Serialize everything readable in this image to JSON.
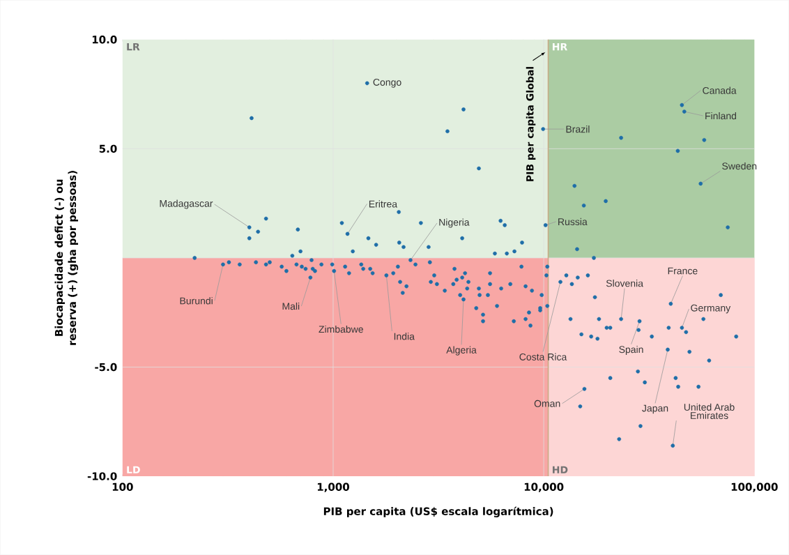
{
  "chart_data": {
    "type": "scatter",
    "xlabel": "PIB per capita (US$ escala logarítmica)",
    "ylabel": "Biocapacidade defict (-) ou reserva (+) (gha por pessoas)",
    "log": "x",
    "grid": true,
    "color": "#1f6ea8",
    "xlim": [
      100,
      100000
    ],
    "ylim": [
      -10,
      10
    ],
    "xticks": [
      100,
      {
        "value": 1000,
        "label": "1,000"
      },
      {
        "value": 10000,
        "label": "10,000"
      },
      {
        "value": 100000,
        "label": "100,000"
      }
    ],
    "yticks": [
      {
        "value": -10,
        "label": "-10.0"
      },
      {
        "value": -5,
        "label": "-5.0"
      },
      {
        "value": 0,
        "label": null
      },
      {
        "value": 5,
        "label": "5.0"
      },
      {
        "value": 10,
        "label": "10.0"
      }
    ],
    "x": [
      410,
      1450,
      3490,
      4160,
      4920,
      9930,
      23300,
      43300,
      45300,
      46500,
      57800,
      55600,
      14000,
      15500,
      19700,
      74800,
      10200,
      14400,
      17300,
      480,
      400,
      400,
      440,
      680,
      700,
      640,
      220,
      1100,
      1170,
      1470,
      1600,
      1240,
      2050,
      2060,
      2160,
      2610,
      2840,
      4100,
      6240,
      6530,
      7890,
      5860,
      6680,
      7260,
      300,
      320,
      360,
      430,
      480,
      500,
      570,
      600,
      670,
      710,
      740,
      790,
      800,
      820,
      780,
      880,
      990,
      1010,
      1140,
      1190,
      1360,
      1390,
      1500,
      1540,
      1790,
      1930,
      2030,
      2080,
      2230,
      2140,
      2330,
      2460,
      2880,
      3020,
      2910,
      3110,
      3770,
      4230,
      4100,
      3860,
      3720,
      3390,
      4390,
      4330,
      4010,
      4160,
      4920,
      4960,
      5430,
      5560,
      5560,
      6280,
      6940,
      7840,
      8200,
      8790,
      9780,
      10400,
      10300,
      10400,
      9620,
      9620,
      8510,
      8200,
      8650,
      7210,
      6000,
      5150,
      5150,
      4780,
      12000,
      12800,
      13600,
      14500,
      16200,
      17500,
      13400,
      18300,
      19900,
      20700,
      23300,
      28500,
      28200,
      32600,
      39200,
      40100,
      45300,
      47400,
      57300,
      69300,
      82000,
      15100,
      16800,
      18000,
      38800,
      49200,
      61000,
      20700,
      28000,
      30200,
      42300,
      43500,
      54300,
      15600,
      14900,
      28800,
      22800,
      41000
    ],
    "values": [
      6.4,
      8.0,
      5.8,
      6.8,
      4.1,
      5.9,
      5.5,
      4.9,
      7.0,
      6.7,
      5.4,
      3.4,
      3.3,
      2.4,
      2.6,
      1.4,
      1.5,
      0.4,
      0.0,
      1.8,
      1.4,
      0.9,
      1.2,
      1.3,
      0.3,
      0.1,
      0.0,
      1.6,
      1.1,
      0.9,
      0.6,
      0.3,
      2.1,
      0.7,
      0.5,
      1.6,
      0.5,
      0.9,
      1.7,
      1.5,
      0.7,
      0.2,
      0.2,
      0.3,
      -0.3,
      -0.2,
      -0.3,
      -0.2,
      -0.3,
      -0.2,
      -0.4,
      -0.6,
      -0.3,
      -0.4,
      -0.5,
      -0.1,
      -0.5,
      -0.6,
      -0.9,
      -0.3,
      -0.3,
      -0.6,
      -0.4,
      -0.7,
      -0.3,
      -0.5,
      -0.5,
      -0.7,
      -0.8,
      -0.7,
      -0.4,
      -1.1,
      -1.3,
      -1.6,
      -0.1,
      -0.3,
      -0.2,
      -0.8,
      -1.1,
      -1.2,
      -0.5,
      -0.7,
      -0.9,
      -1.0,
      -1.2,
      -1.5,
      -1.1,
      -1.4,
      -1.7,
      -1.9,
      -1.4,
      -1.7,
      -1.7,
      -0.7,
      -1.2,
      -1.4,
      -1.2,
      -0.4,
      -1.3,
      -1.5,
      -1.7,
      -0.4,
      -0.8,
      -2.2,
      -2.3,
      -2.4,
      -2.5,
      -2.8,
      -3.1,
      -2.9,
      -2.2,
      -2.6,
      -2.9,
      -2.3,
      -1.1,
      -0.8,
      -1.2,
      -0.9,
      -0.8,
      -1.8,
      -2.8,
      -2.8,
      -3.2,
      -3.2,
      -2.8,
      -2.9,
      -3.3,
      -3.6,
      -3.2,
      -2.1,
      -3.2,
      -3.4,
      -2.8,
      -1.7,
      -3.6,
      -3.5,
      -3.6,
      -3.7,
      -4.2,
      -4.3,
      -4.7,
      -5.5,
      -5.2,
      -5.7,
      -5.5,
      -5.9,
      -5.9,
      -6.0,
      -6.8,
      -7.7,
      -8.3,
      -8.6
    ],
    "bands": [
      {
        "axis": "y",
        "from": 0,
        "to": 10,
        "label": "LR",
        "color": "#e2efdf"
      },
      {
        "axis": "y",
        "from": -10,
        "to": 0,
        "label": "LD",
        "color": "#f8a7a5"
      },
      {
        "axis": "x",
        "from": 10500,
        "to": 100000,
        "label": "HR",
        "color": "#abcca3"
      },
      {
        "axis": "x",
        "from": 10500,
        "to": 100000,
        "label": "HD",
        "color": "#fdd6d5"
      }
    ],
    "ref_lines": [
      {
        "axis": "x",
        "value": 10500,
        "label": "PIB per capita Global",
        "color": "#c9ab86"
      }
    ],
    "annotations": [
      {
        "text": "Congo",
        "x": 1450,
        "y": 8.0
      },
      {
        "text": "Madagascar",
        "x": 400,
        "y": 1.4
      },
      {
        "text": "Eritrea",
        "x": 1170,
        "y": 1.1
      },
      {
        "text": "Nigeria",
        "x": 2330,
        "y": -0.1
      },
      {
        "text": "Burundi",
        "x": 300,
        "y": -0.3
      },
      {
        "text": "Mali",
        "x": 780,
        "y": -0.9
      },
      {
        "text": "Zimbabwe",
        "x": 1010,
        "y": -0.6
      },
      {
        "text": "India",
        "x": 1790,
        "y": -0.8
      },
      {
        "text": "Algeria",
        "x": 4160,
        "y": -1.9
      },
      {
        "text": "Costa Rica",
        "x": 12000,
        "y": -1.1
      },
      {
        "text": "Oman",
        "x": 15600,
        "y": -6.0
      },
      {
        "text": "Slovenia",
        "x": 23300,
        "y": -2.8
      },
      {
        "text": "Spain",
        "x": 28500,
        "y": -2.9
      },
      {
        "text": "France",
        "x": 40100,
        "y": -2.1
      },
      {
        "text": "Germany",
        "x": 45300,
        "y": -3.2
      },
      {
        "text": "Japan",
        "x": 38800,
        "y": -4.2
      },
      {
        "text": "United Arab Emirates",
        "x": 41000,
        "y": -8.6
      },
      {
        "text": "Brazil",
        "x": 9930,
        "y": 5.9
      },
      {
        "text": "Russia",
        "x": 10200,
        "y": 1.5
      },
      {
        "text": "Canada",
        "x": 45300,
        "y": 7.0
      },
      {
        "text": "Finland",
        "x": 46500,
        "y": 6.7
      },
      {
        "text": "Sweden",
        "x": 55600,
        "y": 3.4
      }
    ]
  }
}
